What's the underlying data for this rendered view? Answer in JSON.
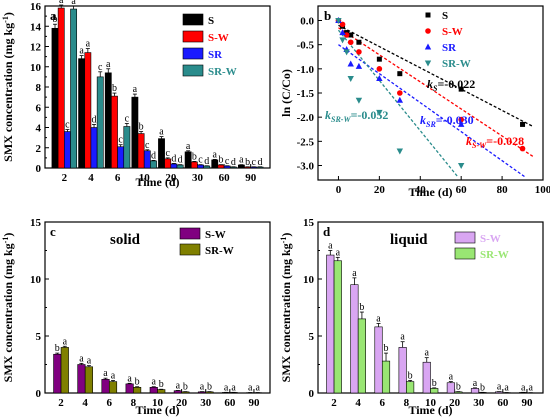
{
  "chart_data": [
    {
      "panel": "a",
      "type": "bar",
      "categories": [
        "2",
        "4",
        "6",
        "10",
        "20",
        "30",
        "60",
        "90"
      ],
      "xlabel": "Time (d)",
      "ylabel": "SMX concentration (mg kg",
      "ylabel_sup": "-1",
      "ylabel_end": ")",
      "ylim": [
        0,
        16
      ],
      "yticks": [
        0,
        2,
        4,
        6,
        8,
        10,
        12,
        14,
        16
      ],
      "legend": "top-right",
      "series": [
        {
          "name": "S",
          "color": "#000000",
          "values": [
            13.8,
            10.8,
            9.4,
            7.0,
            2.9,
            1.6,
            0.8,
            0.3
          ],
          "err": [
            0.4,
            0.3,
            0.4,
            0.3,
            0.2,
            0.1,
            0.05,
            0.03
          ],
          "labels": [
            "b",
            "a",
            "a",
            "a",
            "a",
            "a",
            "a",
            "a"
          ]
        },
        {
          "name": "S-W",
          "color": "#ff0000",
          "values": [
            15.8,
            11.4,
            7.1,
            3.4,
            0.9,
            0.6,
            0.3,
            0.1
          ],
          "err": [
            0.3,
            0.4,
            0.3,
            0.2,
            0.1,
            0.05,
            0.03,
            0.02
          ],
          "labels": [
            "a",
            "a",
            "b",
            "b",
            "c",
            "b",
            "b",
            "b"
          ]
        },
        {
          "name": "SR",
          "color": "#1a1aff",
          "values": [
            3.6,
            4.0,
            2.1,
            1.7,
            0.4,
            0.3,
            0.2,
            0.1
          ],
          "err": [
            0.2,
            0.3,
            0.2,
            0.1,
            0.05,
            0.03,
            0.02,
            0.02
          ],
          "labels": [
            "c",
            "d",
            "c",
            "c",
            "d",
            "c",
            "c",
            "c"
          ]
        },
        {
          "name": "SR-W",
          "color": "#2a8c8c",
          "values": [
            15.7,
            9.0,
            4.1,
            0.7,
            0.3,
            0.2,
            0.1,
            0.1
          ],
          "err": [
            0.3,
            0.5,
            0.3,
            0.05,
            0.03,
            0.02,
            0.02,
            0.02
          ],
          "labels": [
            "a",
            "c",
            "c",
            "d",
            "d",
            "d",
            "d",
            "d"
          ]
        }
      ]
    },
    {
      "panel": "b",
      "type": "scatter",
      "xlabel": "Time (d)",
      "ylabel": "ln (C/Co)",
      "xlim": [
        -10,
        100
      ],
      "ylim": [
        -3.3,
        0.3
      ],
      "xticks": [
        0,
        20,
        40,
        60,
        80,
        100
      ],
      "yticks": [
        0.0,
        -0.5,
        -1.0,
        -1.5,
        -2.0,
        -2.5,
        -3.0
      ],
      "legend": "top-right",
      "series": [
        {
          "name": "S",
          "color": "#000000",
          "marker": "square",
          "x": [
            0,
            2,
            4,
            6,
            10,
            20,
            30,
            60,
            90
          ],
          "y": [
            0,
            -0.12,
            -0.25,
            -0.3,
            -0.45,
            -0.8,
            -1.1,
            -1.42,
            -2.15
          ],
          "k_sub": "S",
          "k_value": "=-0.022",
          "fit_slope": -0.022,
          "fit_intercept": -0.1
        },
        {
          "name": "S-W",
          "color": "#ff0000",
          "marker": "circle",
          "x": [
            0,
            2,
            4,
            6,
            10,
            20,
            30,
            60,
            90
          ],
          "y": [
            0,
            -0.08,
            -0.3,
            -0.45,
            -0.65,
            -1.0,
            -1.5,
            -2.05,
            -2.65
          ],
          "k_sub": "S-W",
          "k_value": "=-0.028",
          "fit_slope": -0.028,
          "fit_intercept": -0.15
        },
        {
          "name": "SR",
          "color": "#1a1aff",
          "marker": "triangle",
          "x": [
            0,
            2,
            4,
            6,
            10,
            20,
            30,
            60
          ],
          "y": [
            0,
            -0.25,
            -0.6,
            -0.9,
            -0.95,
            -1.2,
            -1.65,
            -2.15
          ],
          "k_sub": "SR",
          "k_value": "=-0.030",
          "fit_slope": -0.03,
          "fit_intercept": -0.5
        },
        {
          "name": "SR-W",
          "color": "#2a8c8c",
          "marker": "triangle-down",
          "x": [
            0,
            2,
            4,
            6,
            10,
            20,
            30,
            60
          ],
          "y": [
            0,
            -0.4,
            -0.65,
            -1.2,
            -1.65,
            -1.9,
            -2.7,
            -3.0
          ],
          "k_sub": "SR-W",
          "k_value": "=-0.052",
          "fit_slope": -0.052,
          "fit_intercept": -0.2
        }
      ]
    },
    {
      "panel": "c",
      "type": "bar",
      "title": "solid",
      "categories": [
        "2",
        "4",
        "6",
        "8",
        "10",
        "20",
        "30",
        "60",
        "90"
      ],
      "xlabel": "Time (d)",
      "ylabel": "SMX concentration (mg kg",
      "ylabel_sup": "-1",
      "ylabel_end": ")",
      "ylim": [
        0,
        15
      ],
      "yticks": [
        0,
        5,
        10,
        15
      ],
      "legend": "top-right",
      "series": [
        {
          "name": "S-W",
          "color": "#800080",
          "values": [
            3.4,
            2.5,
            1.2,
            0.8,
            0.5,
            0.2,
            0.1,
            0.05,
            0.03
          ],
          "err": [
            0.1,
            0.1,
            0.1,
            0.05,
            0.05,
            0.02,
            0.02,
            0.01,
            0.01
          ],
          "labels": [
            "b",
            "a",
            "a",
            "a",
            "a",
            "a",
            "a",
            "a",
            "a"
          ]
        },
        {
          "name": "SR-W",
          "color": "#808000",
          "values": [
            4.0,
            2.3,
            1.0,
            0.5,
            0.3,
            0.1,
            0.1,
            0.05,
            0.03
          ],
          "err": [
            0.1,
            0.1,
            0.1,
            0.05,
            0.03,
            0.02,
            0.02,
            0.01,
            0.01
          ],
          "labels": [
            "a",
            "a",
            "a",
            "b",
            "b",
            "b",
            "b",
            "a",
            "a"
          ]
        }
      ]
    },
    {
      "panel": "d",
      "type": "bar",
      "title": "liquid",
      "categories": [
        "2",
        "4",
        "6",
        "8",
        "10",
        "20",
        "30",
        "60",
        "90"
      ],
      "xlabel": "Time (d)",
      "ylabel": "SMX concentration (mg kg",
      "ylabel_sup": "-1",
      "ylabel_end": ")",
      "ylim": [
        0,
        15
      ],
      "yticks": [
        0,
        5,
        10,
        15
      ],
      "legend": "top-right",
      "series": [
        {
          "name": "S-W",
          "color": "#d9a6f2",
          "values": [
            12.1,
            9.5,
            5.8,
            4.0,
            2.7,
            0.9,
            0.4,
            0.1,
            0.05
          ],
          "err": [
            0.4,
            0.6,
            0.3,
            0.5,
            0.4,
            0.1,
            0.05,
            0.02,
            0.01
          ],
          "labels": [
            "a",
            "a",
            "a",
            "a",
            "a",
            "a",
            "a",
            "a",
            "a"
          ]
        },
        {
          "name": "SR-W",
          "color": "#99e673",
          "values": [
            11.6,
            6.5,
            2.8,
            1.0,
            0.4,
            0.1,
            0.05,
            0.03,
            0.02
          ],
          "err": [
            0.3,
            0.6,
            0.7,
            0.1,
            0.05,
            0.02,
            0.01,
            0.01,
            0.01
          ],
          "labels": [
            "a",
            "b",
            "b",
            "b",
            "b",
            "b",
            "b",
            "a",
            "a"
          ]
        }
      ]
    }
  ]
}
